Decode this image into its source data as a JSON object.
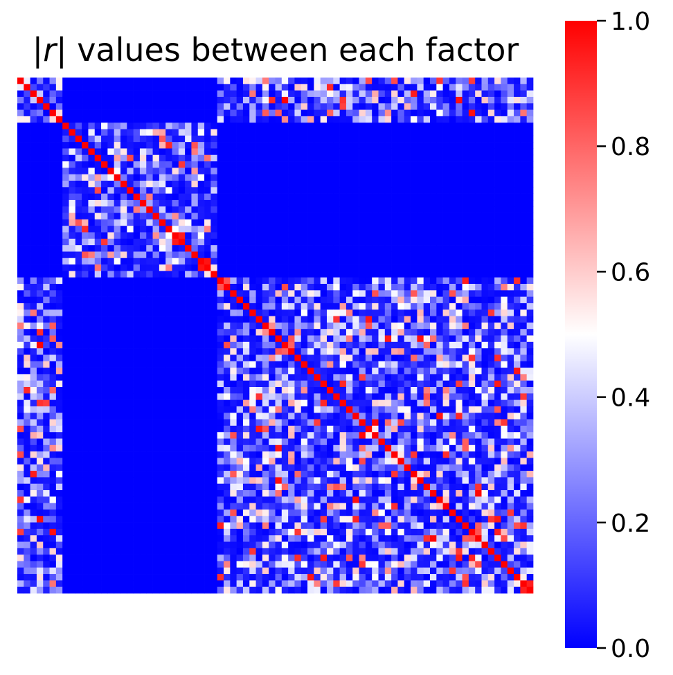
{
  "chart_data": {
    "type": "heatmap",
    "title": "|r| values between each factor",
    "xlabel": "",
    "ylabel": "",
    "grid": false,
    "matrix_size": 80,
    "blocks": [
      {
        "name": "block-1",
        "start": 0,
        "end": 7
      },
      {
        "name": "block-2",
        "start": 7,
        "end": 31
      },
      {
        "name": "block-3",
        "start": 31,
        "end": 80
      }
    ],
    "zero_block_pairs": [
      [
        0,
        1
      ],
      [
        1,
        2
      ]
    ],
    "diagonal_value": 1.0,
    "colorbar": {
      "vmin": 0.0,
      "vmax": 1.0,
      "colormap": "bwr",
      "colors": {
        "low": "#0000ff",
        "mid": "#ffffff",
        "high": "#ff0000"
      },
      "ticks": [
        "0.0",
        "0.2",
        "0.4",
        "0.6",
        "0.8",
        "1.0"
      ],
      "tick_values": [
        0.0,
        0.2,
        0.4,
        0.6,
        0.8,
        1.0
      ]
    }
  }
}
